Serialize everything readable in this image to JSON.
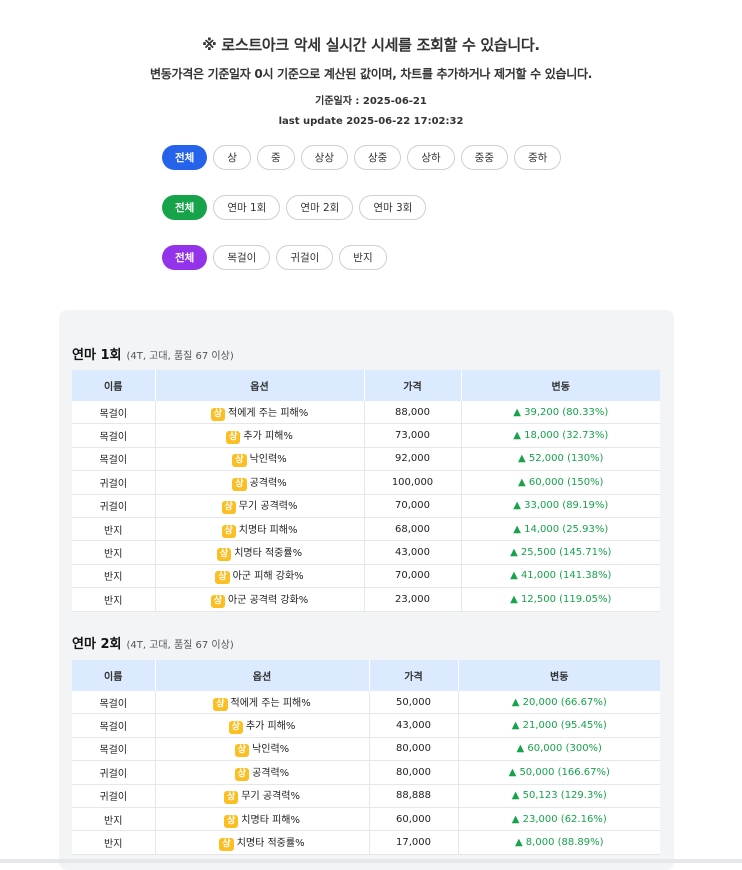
{
  "header": {
    "title": "※ 로스트아크 악세 실시간 시세를 조회할 수 있습니다.",
    "subtitle": "변동가격은 기준일자 0시 기준으로 계산된 값이며, 차트를 추가하거나 제거할 수 있습니다.",
    "base_date": "기준일자 : 2025-06-21",
    "last_update": "last update 2025-06-22 17:02:32"
  },
  "filters": {
    "grade": [
      "전체",
      "상",
      "중",
      "상상",
      "상중",
      "상하",
      "중중",
      "중하"
    ],
    "refine": [
      "전체",
      "연마 1회",
      "연마 2회",
      "연마 3회"
    ],
    "type": [
      "전체",
      "목걸이",
      "귀걸이",
      "반지"
    ]
  },
  "colors": {
    "grade_active": "#2563eb",
    "refine_active": "#16a34a",
    "type_active": "#9333ea",
    "badge": "#fbbf24",
    "up": "#16a34a",
    "table_header": "#dbeafe"
  },
  "columns": [
    "이름",
    "옵션",
    "가격",
    "변동"
  ],
  "sections": [
    {
      "title": "연마 1회",
      "sub": "(4T, 고대, 품질 67 이상)",
      "rows": [
        {
          "name": "목걸이",
          "badge": "상",
          "option": "적에게 주는 피해%",
          "price": "88,000",
          "change": "▲ 39,200 (80.33%)"
        },
        {
          "name": "목걸이",
          "badge": "상",
          "option": "추가 피해%",
          "price": "73,000",
          "change": "▲ 18,000 (32.73%)"
        },
        {
          "name": "목걸이",
          "badge": "상",
          "option": "낙인력%",
          "price": "92,000",
          "change": "▲ 52,000 (130%)"
        },
        {
          "name": "귀걸이",
          "badge": "상",
          "option": "공격력%",
          "price": "100,000",
          "change": "▲ 60,000 (150%)"
        },
        {
          "name": "귀걸이",
          "badge": "상",
          "option": "무기 공격력%",
          "price": "70,000",
          "change": "▲ 33,000 (89.19%)"
        },
        {
          "name": "반지",
          "badge": "상",
          "option": "치명타 피해%",
          "price": "68,000",
          "change": "▲ 14,000 (25.93%)"
        },
        {
          "name": "반지",
          "badge": "상",
          "option": "치명타 적중률%",
          "price": "43,000",
          "change": "▲ 25,500 (145.71%)"
        },
        {
          "name": "반지",
          "badge": "상",
          "option": "아군 피해 강화%",
          "price": "70,000",
          "change": "▲ 41,000 (141.38%)"
        },
        {
          "name": "반지",
          "badge": "상",
          "option": "아군 공격력 강화%",
          "price": "23,000",
          "change": "▲ 12,500 (119.05%)"
        }
      ]
    },
    {
      "title": "연마 2회",
      "sub": "(4T, 고대, 품질 67 이상)",
      "rows": [
        {
          "name": "목걸이",
          "badge": "상",
          "option": "적에게 주는 피해%",
          "price": "50,000",
          "change": "▲ 20,000 (66.67%)"
        },
        {
          "name": "목걸이",
          "badge": "상",
          "option": "추가 피해%",
          "price": "43,000",
          "change": "▲ 21,000 (95.45%)"
        },
        {
          "name": "목걸이",
          "badge": "상",
          "option": "낙인력%",
          "price": "80,000",
          "change": "▲ 60,000 (300%)"
        },
        {
          "name": "귀걸이",
          "badge": "상",
          "option": "공격력%",
          "price": "80,000",
          "change": "▲ 50,000 (166.67%)"
        },
        {
          "name": "귀걸이",
          "badge": "상",
          "option": "무기 공격력%",
          "price": "88,888",
          "change": "▲ 50,123 (129.3%)"
        },
        {
          "name": "반지",
          "badge": "상",
          "option": "치명타 피해%",
          "price": "60,000",
          "change": "▲ 23,000 (62.16%)"
        },
        {
          "name": "반지",
          "badge": "상",
          "option": "치명타 적중률%",
          "price": "17,000",
          "change": "▲ 8,000 (88.89%)"
        }
      ]
    }
  ]
}
